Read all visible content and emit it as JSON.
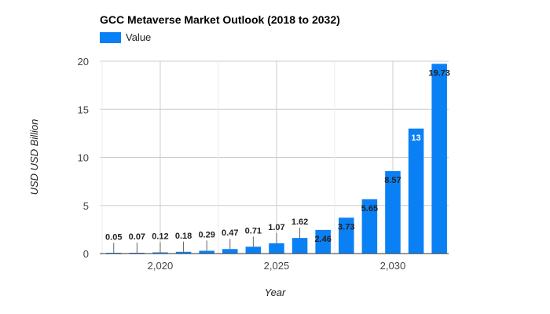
{
  "chart_data": {
    "type": "bar",
    "title": "GCC Metaverse Market Outlook (2018 to 2032)",
    "xlabel": "Year",
    "ylabel": "USD USD Billion",
    "legend": {
      "position": "top-left",
      "entries": [
        "Value"
      ]
    },
    "grid": true,
    "xlim": [
      2017.4,
      2032.4
    ],
    "ylim": [
      0,
      20
    ],
    "x_ticks": [
      2020,
      2025,
      2030
    ],
    "x_tick_labels": [
      "2,020",
      "2,025",
      "2,030"
    ],
    "y_ticks": [
      0,
      5,
      10,
      15,
      20
    ],
    "y_tick_labels": [
      "0",
      "5",
      "10",
      "15",
      "20"
    ],
    "series": [
      {
        "name": "Value",
        "color": "#0a80f5",
        "x": [
          2018,
          2019,
          2020,
          2021,
          2022,
          2023,
          2024,
          2025,
          2026,
          2027,
          2028,
          2029,
          2030,
          2031,
          2032
        ],
        "values": [
          0.05,
          0.07,
          0.12,
          0.18,
          0.29,
          0.47,
          0.71,
          1.07,
          1.62,
          2.46,
          3.73,
          5.65,
          8.57,
          13,
          19.73
        ],
        "labels": [
          "0.05",
          "0.07",
          "0.12",
          "0.18",
          "0.29",
          "0.47",
          "0.71",
          "1.07",
          "1.62",
          "2.46",
          "3.73",
          "5.65",
          "8.57",
          "13",
          "19.73"
        ]
      }
    ]
  }
}
